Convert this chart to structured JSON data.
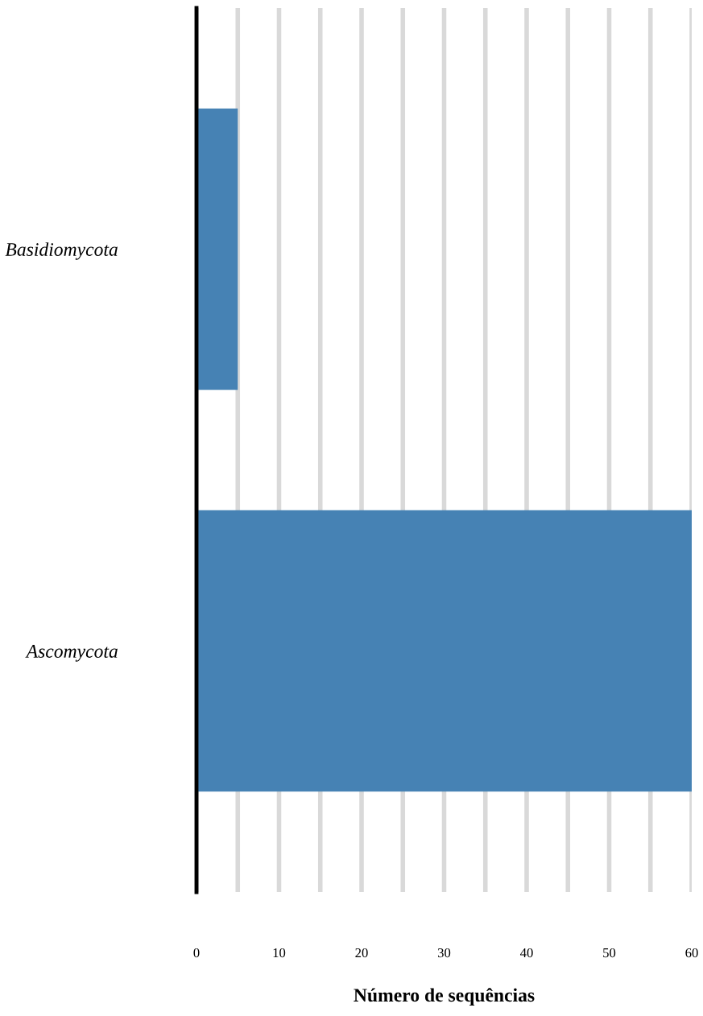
{
  "chart_data": {
    "type": "bar",
    "orientation": "horizontal",
    "xlabel": "Número de sequências",
    "categories": [
      "Basidiomycota",
      "Ascomycota"
    ],
    "values": [
      5,
      60
    ],
    "color": "#4682b4",
    "xlim": [
      0,
      60
    ],
    "xticks": [
      0,
      {
        "value": 5,
        "label": null
      },
      10,
      {
        "value": 15,
        "label": null
      },
      20,
      {
        "value": 25,
        "label": null
      },
      30,
      {
        "value": 35,
        "label": null
      },
      40,
      {
        "value": 45,
        "label": null
      },
      50,
      {
        "value": 55,
        "label": null
      },
      60
    ],
    "grid": "x",
    "legend": false
  }
}
